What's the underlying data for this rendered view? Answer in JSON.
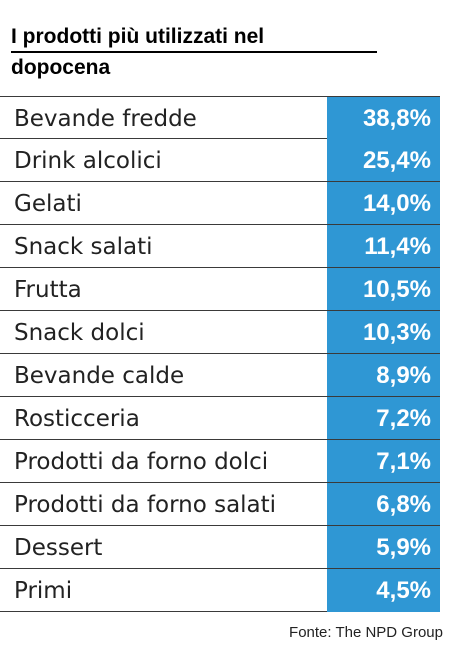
{
  "chart_data": {
    "type": "table",
    "title_line1": "I prodotti più utilizzati nel",
    "title_line2": "dopocena",
    "categories": [
      "Bevande fredde",
      "Drink alcolici",
      "Gelati",
      "Snack salati",
      "Frutta",
      "Snack dolci",
      "Bevande calde",
      "Rosticceria",
      "Prodotti da forno dolci",
      "Prodotti da forno salati",
      "Dessert",
      "Primi"
    ],
    "values": [
      38.8,
      25.4,
      14.0,
      11.4,
      10.5,
      10.3,
      8.9,
      7.2,
      7.1,
      6.8,
      5.9,
      4.5
    ],
    "value_labels": [
      "38,8%",
      "25,4%",
      "14,0%",
      "11,4%",
      "10,5%",
      "10,3%",
      "8,9%",
      "7,2%",
      "7,1%",
      "6,8%",
      "5,9%",
      "4,5%"
    ],
    "source": "Fonte: The NPD Group",
    "colors": {
      "value_cell": "#2f97d4",
      "value_text": "#ffffff"
    }
  }
}
